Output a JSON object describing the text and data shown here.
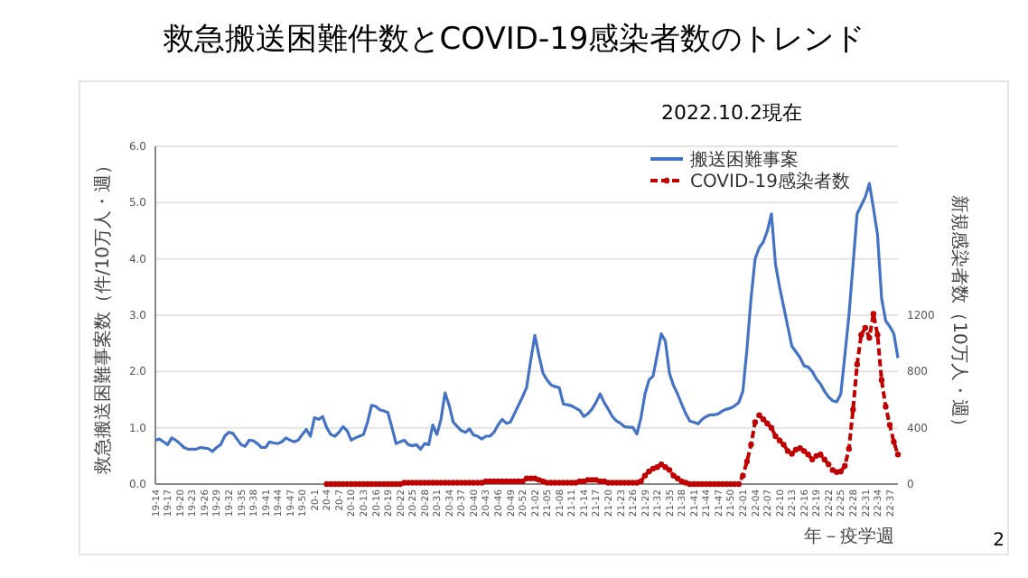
{
  "chart_data": {
    "type": "line",
    "title": "救急搬送困難件数とCOVID-19感染者数のトレンド",
    "xlabel": "年－疫学週",
    "ylabel": "救急搬送困難事案数（件/10万人・週）",
    "y2label": "新規感染者数（10万人・週）",
    "annotations": [
      "2022.10.2現在",
      "2"
    ],
    "categories": [
      "19-14",
      null,
      null,
      "19-17",
      null,
      null,
      "19-20",
      null,
      null,
      "19-23",
      null,
      null,
      "19-26",
      null,
      null,
      "19-29",
      null,
      null,
      "19-32",
      null,
      null,
      "19-35",
      null,
      null,
      "19-38",
      null,
      null,
      "19-41",
      null,
      null,
      "19-44",
      null,
      null,
      "19-47",
      null,
      null,
      "19-50",
      null,
      null,
      "20-1",
      null,
      null,
      "20-4",
      null,
      null,
      "20-7",
      null,
      null,
      "20-10",
      null,
      null,
      "20-13",
      null,
      null,
      "20-16",
      null,
      null,
      "20-19",
      null,
      null,
      "20-22",
      null,
      null,
      "20-25",
      null,
      null,
      "20-28",
      null,
      null,
      "20-31",
      null,
      null,
      "20-34",
      null,
      null,
      "20-37",
      null,
      null,
      "20-40",
      null,
      null,
      "20-43",
      null,
      null,
      "20-46",
      null,
      null,
      "20-49",
      null,
      null,
      "20-52",
      null,
      null,
      "21-02",
      null,
      null,
      "21-05",
      null,
      null,
      "21-08",
      null,
      null,
      "21-11",
      null,
      null,
      "21-14",
      null,
      null,
      "21-17",
      null,
      null,
      "21-20",
      null,
      null,
      "21-23",
      null,
      null,
      "21-26",
      null,
      null,
      "21-29",
      null,
      null,
      "21-32",
      null,
      null,
      "21-35",
      null,
      null,
      "21-38",
      null,
      null,
      "21-41",
      null,
      null,
      "21-44",
      null,
      null,
      "21-47",
      null,
      null,
      "21-50",
      null,
      null,
      "22-01",
      null,
      null,
      "22-04",
      null,
      null,
      "22-07",
      null,
      null,
      "22-10",
      null,
      null,
      "22-13",
      null,
      null,
      "22-16",
      null,
      null,
      "22-19",
      null,
      null,
      "22-22",
      null,
      null,
      "22-25",
      null,
      null,
      "22-28",
      null,
      null,
      "22-31",
      null,
      null,
      "22-34",
      null,
      null,
      "22-37",
      null,
      null
    ],
    "series": [
      {
        "name": "搬送困難事案",
        "color": "#4472c4",
        "marker": "none",
        "line_style": "solid",
        "values": [
          0.78,
          0.8,
          0.75,
          0.7,
          0.82,
          0.78,
          0.72,
          0.65,
          0.62,
          0.62,
          0.62,
          0.65,
          0.64,
          0.63,
          0.58,
          0.65,
          0.7,
          0.85,
          0.92,
          0.9,
          0.8,
          0.7,
          0.67,
          0.78,
          0.77,
          0.72,
          0.65,
          0.65,
          0.75,
          0.73,
          0.72,
          0.75,
          0.82,
          0.78,
          0.75,
          0.78,
          0.88,
          0.97,
          0.85,
          1.18,
          1.15,
          1.2,
          1.0,
          0.88,
          0.85,
          0.92,
          1.02,
          0.95,
          0.78,
          0.82,
          0.85,
          0.88,
          1.1,
          1.4,
          1.38,
          1.32,
          1.3,
          1.27,
          1.0,
          0.72,
          0.75,
          0.78,
          0.7,
          0.68,
          0.7,
          0.62,
          0.72,
          0.7,
          1.05,
          0.88,
          1.15,
          1.62,
          1.4,
          1.1,
          1.02,
          0.95,
          0.92,
          0.98,
          0.87,
          0.85,
          0.8,
          0.85,
          0.85,
          0.92,
          1.05,
          1.15,
          1.08,
          1.1,
          1.25,
          1.4,
          1.55,
          1.72,
          2.2,
          2.64,
          2.29,
          1.97,
          1.85,
          1.76,
          1.73,
          1.71,
          1.42,
          1.41,
          1.39,
          1.35,
          1.31,
          1.2,
          1.25,
          1.33,
          1.45,
          1.6,
          1.45,
          1.33,
          1.2,
          1.12,
          1.08,
          1.02,
          1.01,
          1.01,
          0.89,
          1.17,
          1.6,
          1.85,
          1.92,
          2.3,
          2.67,
          2.54,
          1.97,
          1.75,
          1.6,
          1.42,
          1.25,
          1.12,
          1.1,
          1.07,
          1.15,
          1.2,
          1.23,
          1.23,
          1.25,
          1.3,
          1.33,
          1.35,
          1.39,
          1.45,
          1.65,
          2.4,
          3.3,
          4.0,
          4.2,
          4.3,
          4.5,
          4.8,
          3.9,
          3.5,
          3.15,
          2.8,
          2.45,
          2.35,
          2.25,
          2.1,
          2.08,
          2.0,
          1.87,
          1.78,
          1.65,
          1.55,
          1.48,
          1.46,
          1.6,
          2.29,
          3.0,
          3.9,
          4.8,
          4.95,
          5.1,
          5.34,
          4.9,
          4.43,
          3.3,
          2.9,
          2.8,
          2.67,
          2.24
        ]
      },
      {
        "name": "COVID-19感染者数",
        "color": "#c00000",
        "axis": "y2",
        "marker": "circle",
        "line_style": "dashed",
        "values": [
          null,
          null,
          null,
          null,
          null,
          null,
          null,
          null,
          null,
          null,
          null,
          null,
          null,
          null,
          null,
          null,
          null,
          null,
          null,
          null,
          null,
          null,
          null,
          null,
          null,
          null,
          null,
          null,
          null,
          null,
          null,
          null,
          null,
          null,
          null,
          null,
          null,
          null,
          null,
          null,
          null,
          null,
          0,
          0,
          0,
          0,
          0,
          0,
          0,
          0,
          0,
          0,
          0,
          0,
          0,
          0,
          0,
          0,
          0,
          0,
          0,
          10,
          10,
          10,
          10,
          10,
          10,
          10,
          10,
          10,
          10,
          10,
          10,
          10,
          10,
          10,
          10,
          10,
          10,
          10,
          10,
          20,
          20,
          20,
          20,
          20,
          20,
          20,
          20,
          20,
          20,
          40,
          40,
          40,
          30,
          20,
          10,
          10,
          10,
          10,
          10,
          10,
          10,
          10,
          20,
          20,
          30,
          30,
          30,
          20,
          20,
          10,
          10,
          10,
          10,
          10,
          10,
          10,
          10,
          20,
          60,
          90,
          110,
          120,
          140,
          120,
          100,
          60,
          40,
          20,
          10,
          0,
          0,
          0,
          0,
          0,
          0,
          0,
          0,
          0,
          0,
          0,
          0,
          0,
          60,
          160,
          280,
          440,
          490,
          460,
          430,
          400,
          340,
          310,
          280,
          235,
          215,
          245,
          255,
          235,
          210,
          175,
          200,
          210,
          175,
          140,
          100,
          85,
          90,
          130,
          250,
          530,
          850,
          1060,
          1110,
          1040,
          1210,
          1060,
          740,
          550,
          420,
          300,
          210
        ]
      }
    ],
    "ylim": [
      0,
      6
    ],
    "yticks": [
      {
        "value": 0,
        "label": "0.0"
      },
      {
        "value": 1,
        "label": "1.0"
      },
      {
        "value": 2,
        "label": "2.0"
      },
      {
        "value": 3,
        "label": "3.0"
      },
      {
        "value": 4,
        "label": "4.0"
      },
      {
        "value": 5,
        "label": "5.0"
      },
      {
        "value": 6,
        "label": "6.0"
      }
    ],
    "y2lim": [
      0,
      2400
    ],
    "y2ticks": [
      0,
      400,
      800,
      1200
    ],
    "grid": "y",
    "legend": "top right"
  }
}
